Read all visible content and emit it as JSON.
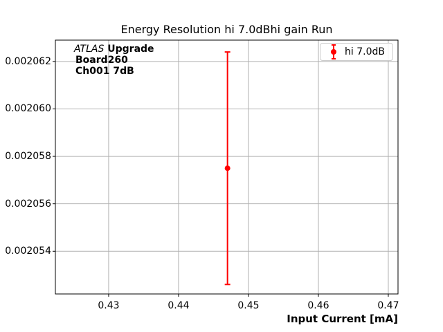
{
  "chart_data": {
    "type": "scatter",
    "title": "Energy Resolution hi 7.0dBhi gain Run",
    "xlabel": "Input Current [mA]",
    "ylabel": "",
    "xlim": [
      0.42238,
      0.47139
    ],
    "ylim": [
      0.0020522,
      0.0020629
    ],
    "xticks": [
      0.43,
      0.44,
      0.45,
      0.46,
      0.47
    ],
    "xtick_labels": [
      "0.43",
      "0.44",
      "0.45",
      "0.46",
      "0.47"
    ],
    "yticks": [
      0.002054,
      0.002056,
      0.002058,
      0.00206,
      0.002062
    ],
    "ytick_labels": [
      "0.002054",
      "0.002056",
      "0.002058",
      "0.002060",
      "0.002062"
    ],
    "grid": true,
    "grid_color": "#b0b0b0",
    "spine_color": "#000000",
    "series": [
      {
        "name": "hi 7.0dB",
        "color": "#ff0000",
        "points": [
          {
            "x": 0.447,
            "y": 0.0020575,
            "yerr": 4.9e-06
          }
        ]
      }
    ],
    "legend": {
      "position": "upper right",
      "entries": [
        "hi 7.0dB"
      ]
    },
    "annotation": {
      "line1_italic": "ATLAS",
      "line1_bold": " Upgrade",
      "line2": "Board260",
      "line3": "Ch001 7dB"
    }
  }
}
